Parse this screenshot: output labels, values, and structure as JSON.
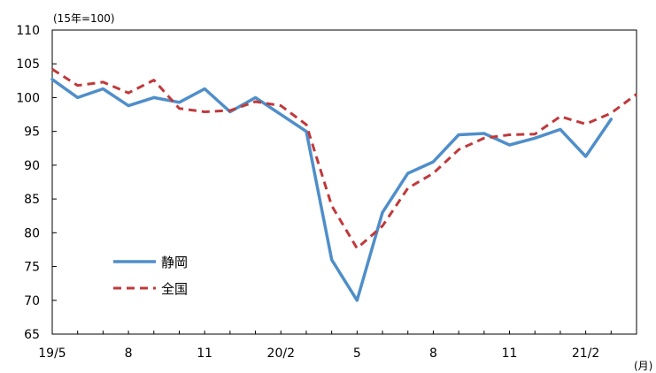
{
  "chart_data": {
    "type": "line",
    "y_unit_label": "(15年=100)",
    "x_unit_label": "(月)",
    "ylim": [
      65,
      110
    ],
    "y_ticks": [
      65,
      70,
      75,
      80,
      85,
      90,
      95,
      100,
      105,
      110
    ],
    "x_tick_labels": [
      {
        "index": 0,
        "label": "19/5"
      },
      {
        "index": 3,
        "label": "8"
      },
      {
        "index": 6,
        "label": "11"
      },
      {
        "index": 9,
        "label": "20/2"
      },
      {
        "index": 12,
        "label": "5"
      },
      {
        "index": 15,
        "label": "8"
      },
      {
        "index": 18,
        "label": "11"
      },
      {
        "index": 21,
        "label": "21/2"
      }
    ],
    "x": [
      "19/5",
      "19/6",
      "19/7",
      "19/8",
      "19/9",
      "19/10",
      "19/11",
      "19/12",
      "20/1",
      "20/2",
      "20/3",
      "20/4",
      "20/5",
      "20/6",
      "20/7",
      "20/8",
      "20/9",
      "20/10",
      "20/11",
      "20/12",
      "21/1",
      "21/2",
      "21/3",
      "21/4"
    ],
    "series": [
      {
        "name": "静岡",
        "color": "#4f8ec9",
        "style": "solid",
        "values": [
          102.7,
          100.0,
          101.3,
          98.8,
          100.0,
          99.3,
          101.3,
          97.9,
          100.0,
          97.5,
          95.0,
          76.0,
          70.0,
          83.0,
          88.8,
          90.5,
          94.5,
          94.7,
          93.0,
          94.0,
          95.3,
          91.3,
          96.8,
          null
        ]
      },
      {
        "name": "全国",
        "color": "#c0393b",
        "style": "dashed",
        "values": [
          104.2,
          101.8,
          102.3,
          100.7,
          102.6,
          98.4,
          97.9,
          98.1,
          99.4,
          98.8,
          96.0,
          84.0,
          77.7,
          81.0,
          86.6,
          88.8,
          92.3,
          94.0,
          94.5,
          94.6,
          97.2,
          96.1,
          97.7,
          100.5
        ]
      }
    ],
    "legend": {
      "placement": "lower-left"
    },
    "grid": false
  }
}
